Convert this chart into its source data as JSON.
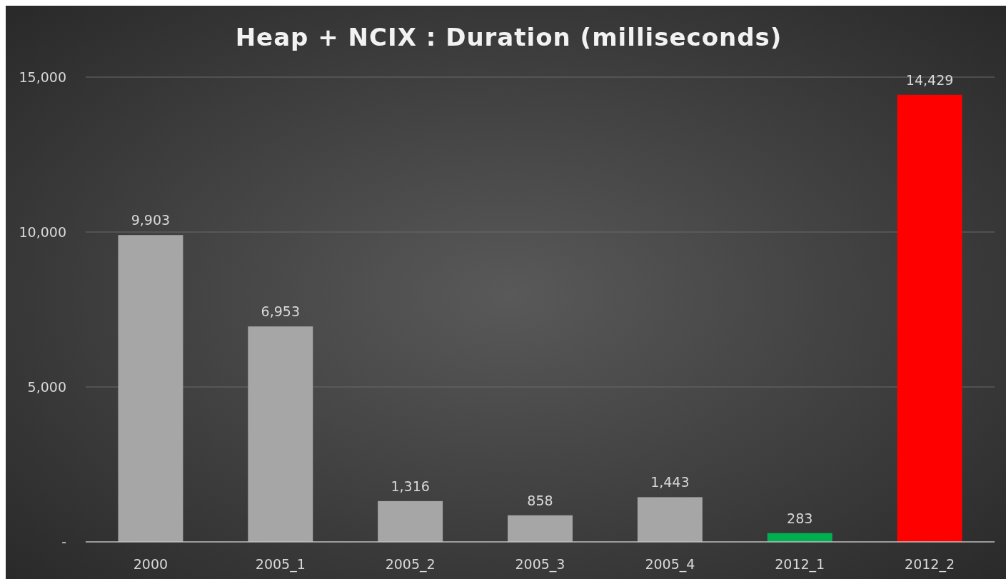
{
  "chart_data": {
    "type": "bar",
    "title": "Heap + NCIX : Duration (milliseconds)",
    "categories": [
      "2000",
      "2005_1",
      "2005_2",
      "2005_3",
      "2005_4",
      "2012_1",
      "2012_2"
    ],
    "values": [
      9903,
      6953,
      1316,
      858,
      1443,
      283,
      14429
    ],
    "colors": [
      "#a6a6a6",
      "#a6a6a6",
      "#a6a6a6",
      "#a6a6a6",
      "#a6a6a6",
      "#00b050",
      "#ff0000"
    ],
    "value_labels": [
      "9,903",
      "6,953",
      "1,316",
      "858",
      "1,443",
      "283",
      "14,429"
    ],
    "ylim": [
      0,
      15000
    ],
    "yticks": [
      {
        "value": 0,
        "label": "-"
      },
      {
        "value": 5000,
        "label": "5,000"
      },
      {
        "value": 10000,
        "label": "10,000"
      },
      {
        "value": 15000,
        "label": "15,000"
      }
    ],
    "grid": "y"
  }
}
